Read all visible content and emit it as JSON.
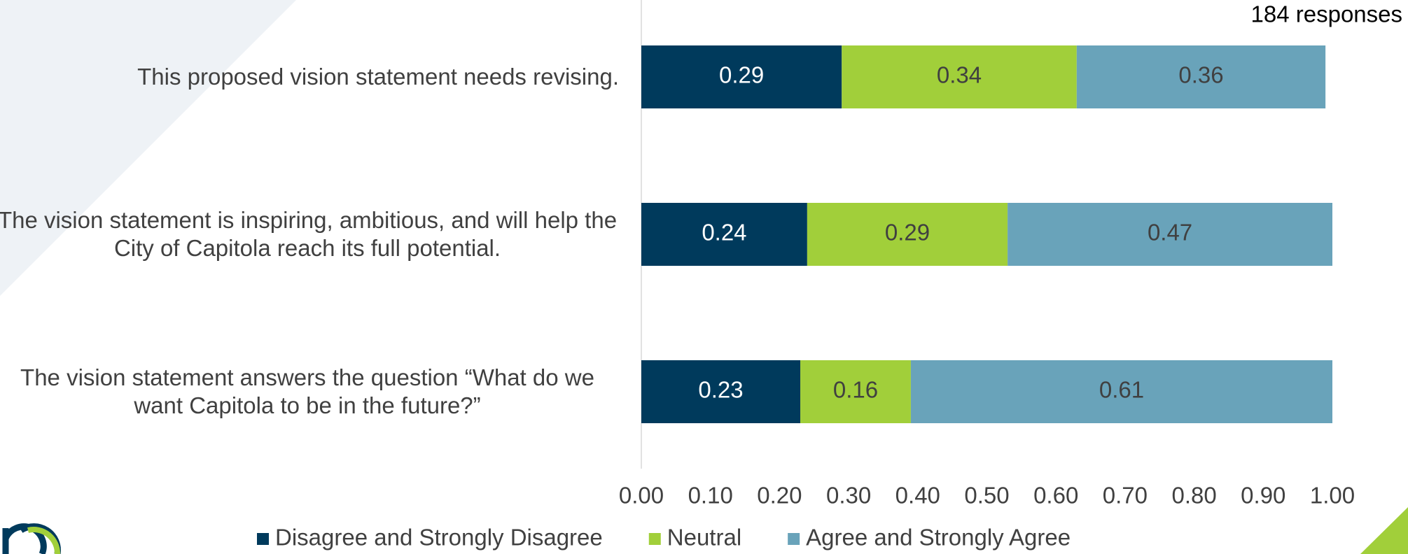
{
  "chart_data": {
    "type": "stacked-barh",
    "annotation": "184 responses",
    "categories": [
      "This proposed vision statement needs revising.",
      "The vision statement is inspiring, ambitious, and will help the City of Capitola reach its full potential.",
      "The vision statement answers the question “What do we want Capitola to be in the future?”"
    ],
    "series": [
      {
        "name": "Disagree and Strongly Disagree",
        "color": "#003a5c",
        "values": [
          0.29,
          0.24,
          0.23
        ]
      },
      {
        "name": "Neutral",
        "color": "#a1cf3a",
        "values": [
          0.34,
          0.29,
          0.16
        ]
      },
      {
        "name": "Agree and Strongly Agree",
        "color": "#69a3ba",
        "values": [
          0.36,
          0.47,
          0.61
        ]
      }
    ],
    "xlim": [
      0,
      1
    ],
    "xticks": [
      {
        "value": 0,
        "label": "0.00"
      },
      {
        "value": 0.1,
        "label": "0.10"
      },
      {
        "value": 0.2,
        "label": "0.20"
      },
      {
        "value": 0.3,
        "label": "0.30"
      },
      {
        "value": 0.4,
        "label": "0.40"
      },
      {
        "value": 0.5,
        "label": "0.50"
      },
      {
        "value": 0.6,
        "label": "0.60"
      },
      {
        "value": 0.7,
        "label": "0.70"
      },
      {
        "value": 0.8,
        "label": "0.80"
      },
      {
        "value": 0.9,
        "label": "0.90"
      },
      {
        "value": 1,
        "label": "1.00"
      }
    ],
    "legend": "bottom"
  }
}
